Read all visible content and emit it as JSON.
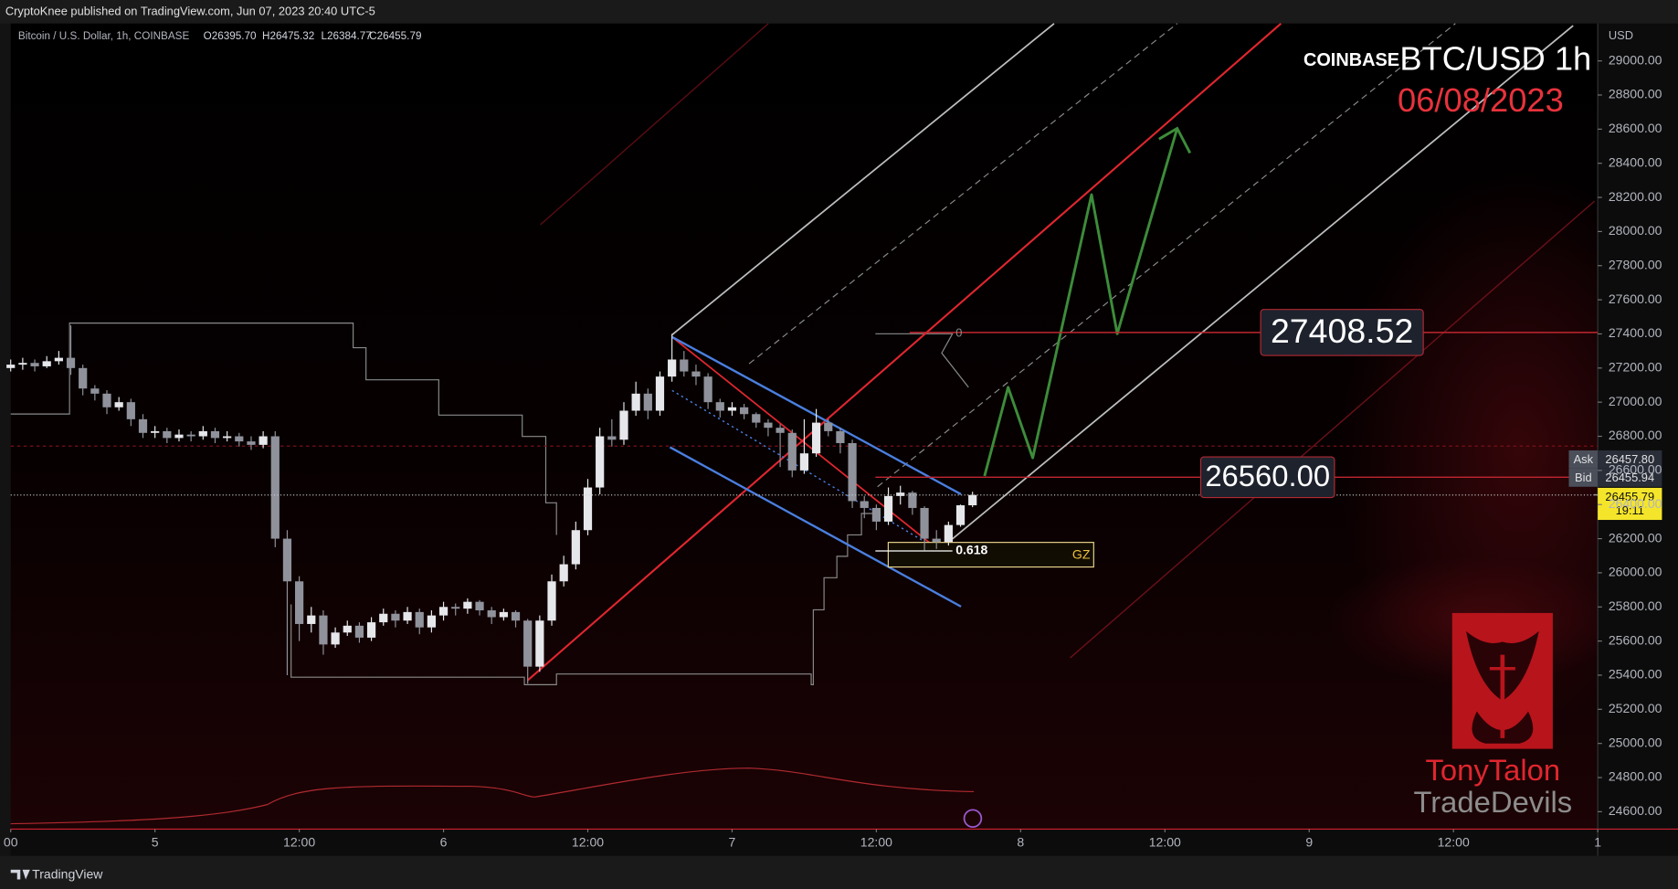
{
  "header": {
    "publisher": "CryptoKnee published on TradingView.com, Jun 07, 2023 20:40 UTC-5"
  },
  "footer": {
    "brand": "TradingView"
  },
  "chart_data": {
    "type": "candlestick",
    "exchange": "COINBASE",
    "title": "BTC/USD 1h",
    "date": "06/08/2023",
    "symbol_description": "Bitcoin / U.S. Dollar, 1h, COINBASE",
    "ohlc_legend": [
      "O26395.70",
      "H26475.32",
      "L26384.77",
      "C26455.79"
    ],
    "currency": "USD",
    "up_color": "#e6e7eb",
    "down_color": "#8f929b",
    "xlim": [
      0,
      132
    ],
    "xticks": [
      {
        "value": 0,
        "label": "00"
      },
      {
        "value": 12,
        "label": "5"
      },
      {
        "value": 24,
        "label": "12:00"
      },
      {
        "value": 36,
        "label": "6"
      },
      {
        "value": 48,
        "label": "12:00"
      },
      {
        "value": 60,
        "label": "7"
      },
      {
        "value": 72,
        "label": "12:00"
      },
      {
        "value": 84,
        "label": "8"
      },
      {
        "value": 96,
        "label": "12:00"
      },
      {
        "value": 108,
        "label": "9"
      },
      {
        "value": 120,
        "label": "12:00"
      },
      {
        "value": 132,
        "label": "1"
      }
    ],
    "ylim": [
      24498,
      29219
    ],
    "yticks": [
      {
        "value": 24600,
        "label": "24600.00"
      },
      {
        "value": 24800,
        "label": "24800.00"
      },
      {
        "value": 25000,
        "label": "25000.00"
      },
      {
        "value": 25200,
        "label": "25200.00"
      },
      {
        "value": 25400,
        "label": "25400.00"
      },
      {
        "value": 25600,
        "label": "25600.00"
      },
      {
        "value": 25800,
        "label": "25800.00"
      },
      {
        "value": 26000,
        "label": "26000.00"
      },
      {
        "value": 26200,
        "label": "26200.00"
      },
      {
        "value": 26400,
        "label": "26400.00"
      },
      {
        "value": 26600,
        "label": "26600.00"
      },
      {
        "value": 26800,
        "label": "26800.00"
      },
      {
        "value": 27000,
        "label": "27000.00"
      },
      {
        "value": 27200,
        "label": "27200.00"
      },
      {
        "value": 27400,
        "label": "27400.00"
      },
      {
        "value": 27600,
        "label": "27600.00"
      },
      {
        "value": 27800,
        "label": "27800.00"
      },
      {
        "value": 28000,
        "label": "28000.00"
      },
      {
        "value": 28200,
        "label": "28200.00"
      },
      {
        "value": 28400,
        "label": "28400.00"
      },
      {
        "value": 28600,
        "label": "28600.00"
      },
      {
        "value": 28800,
        "label": "28800.00"
      },
      {
        "value": 29000,
        "label": "29000.00"
      }
    ],
    "open": [
      27200,
      27220,
      27230,
      27210,
      27240,
      27260,
      27200,
      27080,
      27050,
      26970,
      27000,
      26900,
      26820,
      26830,
      26790,
      26810,
      26800,
      26830,
      26790,
      26800,
      26770,
      26750,
      26800,
      26200,
      25950,
      25700,
      25750,
      25580,
      25650,
      25690,
      25620,
      25710,
      25760,
      25720,
      25770,
      25680,
      25750,
      25800,
      25790,
      25830,
      25780,
      25740,
      25770,
      25720,
      25450,
      25720,
      25950,
      26050,
      26250,
      26500,
      26800,
      26780,
      26950,
      27050,
      26950,
      27150,
      27250,
      27180,
      27150,
      27000,
      26950,
      26970,
      26930,
      26880,
      26850,
      26820,
      26600,
      26700,
      26880,
      26830,
      26760,
      26420,
      26380,
      26300,
      26450,
      26470,
      26380,
      26200,
      26180,
      26280,
      26395.7
    ],
    "high": [
      27250,
      27260,
      27250,
      27270,
      27300,
      27450,
      27220,
      27100,
      27070,
      27030,
      27020,
      26930,
      26860,
      26850,
      26840,
      26830,
      26860,
      26850,
      26830,
      26820,
      26800,
      26830,
      26830,
      26250,
      25980,
      25800,
      25780,
      25680,
      25720,
      25710,
      25740,
      25790,
      25780,
      25800,
      25790,
      25780,
      25830,
      25820,
      25850,
      25840,
      25800,
      25790,
      25780,
      25730,
      25750,
      25990,
      26100,
      26300,
      26550,
      26850,
      26900,
      27000,
      27120,
      27080,
      27180,
      27400,
      27300,
      27220,
      27170,
      27020,
      27000,
      26990,
      26940,
      26900,
      26870,
      26840,
      26900,
      26960,
      26900,
      26850,
      26780,
      26450,
      26400,
      26500,
      26510,
      26480,
      26390,
      26250,
      26300,
      26400,
      26475.32
    ],
    "low": [
      27180,
      27190,
      27180,
      27200,
      27220,
      27160,
      27040,
      27010,
      26930,
      26950,
      26860,
      26790,
      26790,
      26760,
      26770,
      26770,
      26780,
      26760,
      26770,
      26740,
      26720,
      26730,
      26150,
      25400,
      25600,
      25650,
      25520,
      25560,
      25630,
      25590,
      25600,
      25690,
      25680,
      25700,
      25640,
      25650,
      25720,
      25750,
      25760,
      25750,
      25700,
      25720,
      25680,
      25350,
      25420,
      25690,
      25920,
      26020,
      26220,
      26460,
      26740,
      26750,
      26920,
      26900,
      26920,
      27120,
      27150,
      27100,
      26960,
      26910,
      26920,
      26900,
      26850,
      26800,
      26620,
      26560,
      26580,
      26680,
      26800,
      26700,
      26380,
      26320,
      26250,
      26280,
      26400,
      26340,
      26130,
      26140,
      26160,
      26270,
      26384.77
    ],
    "close": [
      27220,
      27230,
      27210,
      27240,
      27260,
      27200,
      27080,
      27050,
      26970,
      27000,
      26900,
      26820,
      26830,
      26790,
      26810,
      26800,
      26830,
      26790,
      26800,
      26770,
      26750,
      26800,
      26200,
      25950,
      25700,
      25750,
      25580,
      25650,
      25690,
      25620,
      25710,
      25760,
      25720,
      25770,
      25680,
      25750,
      25800,
      25790,
      25830,
      25780,
      25740,
      25770,
      25720,
      25450,
      25720,
      25950,
      26050,
      26250,
      26500,
      26800,
      26780,
      26950,
      27050,
      26950,
      27150,
      27250,
      27180,
      27150,
      27000,
      26950,
      26970,
      26930,
      26880,
      26850,
      26820,
      26600,
      26700,
      26880,
      26830,
      26760,
      26420,
      26380,
      26300,
      26450,
      26470,
      26380,
      26200,
      26180,
      26280,
      26395.7,
      26455.79
    ],
    "levels": [
      {
        "value": 27408.52,
        "label": "27408.52"
      },
      {
        "value": 26560,
        "label": "26560.00"
      }
    ],
    "fib_levels": [
      0,
      0.618
    ],
    "zone_label": "GZ",
    "ask_label": "Ask",
    "ask": {
      "value": 26457.8,
      "label": "26457.80"
    },
    "bid_label": "Bid",
    "bid": {
      "value": 26455.94,
      "label": "26455.94"
    },
    "last": {
      "value": 26455.79,
      "label": "26455.79"
    },
    "countdown": "19:11",
    "watermark": [
      "TonyTalon",
      "TradeDevils"
    ]
  }
}
